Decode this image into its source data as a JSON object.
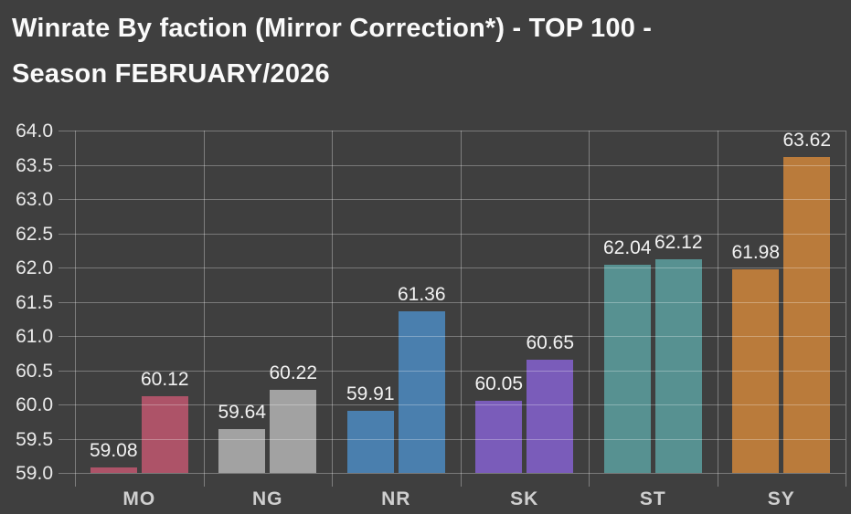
{
  "title_line1": "Winrate By faction (Mirror Correction*) - TOP 100 -",
  "title_line2": "Season FEBRUARY/2026",
  "chart_data": {
    "type": "bar",
    "title": "Winrate By faction (Mirror Correction*) - TOP 100 - Season FEBRUARY/2026",
    "categories": [
      "MO",
      "NG",
      "NR",
      "SK",
      "ST",
      "SY"
    ],
    "values": [
      [
        59.08,
        60.12
      ],
      [
        59.64,
        60.22
      ],
      [
        59.91,
        61.36
      ],
      [
        60.05,
        60.65
      ],
      [
        62.04,
        62.12
      ],
      [
        61.98,
        63.62
      ]
    ],
    "bar_colors": [
      "#ad5368",
      "#a2a2a2",
      "#4a7fae",
      "#7a5cba",
      "#579191",
      "#ba7b3b"
    ],
    "ylim": [
      59.0,
      64.0
    ],
    "ytick_step": 0.5,
    "ytick_labels": [
      "64.0",
      "63.5",
      "63.0",
      "62.5",
      "62.0",
      "61.5",
      "61.0",
      "60.5",
      "60.0",
      "59.5",
      "59.0"
    ],
    "grid": true,
    "gridlines_over_bars": true,
    "value_labels": true,
    "legend": "none",
    "xlabel": "",
    "ylabel": ""
  },
  "colors": {
    "background": "#3f3f3f",
    "grid": "rgba(255,255,255,0.30)",
    "title_text": "#fafafa",
    "axis_text": "#eaeaea",
    "category_text": "#cfcfcf",
    "value_text": "#f2f2f2"
  }
}
